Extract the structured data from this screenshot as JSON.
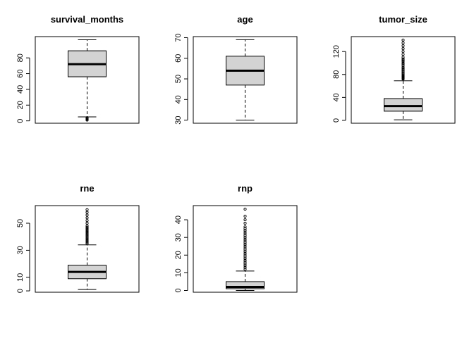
{
  "chart_data": [
    {
      "type": "boxplot",
      "title": "survival_months",
      "ylim": [
        -3,
        107
      ],
      "yticks": [
        0,
        20,
        40,
        60,
        80
      ],
      "box": {
        "whisker_low": 5,
        "q1": 56,
        "median": 72,
        "q3": 89,
        "whisker_high": 103
      },
      "outliers": [
        1,
        2,
        3,
        4
      ],
      "grid": false,
      "box_fill": "#d3d3d3"
    },
    {
      "type": "boxplot",
      "title": "age",
      "ylim": [
        28.5,
        70.5
      ],
      "yticks": [
        30,
        40,
        50,
        60,
        70
      ],
      "box": {
        "whisker_low": 30,
        "q1": 47,
        "median": 54,
        "q3": 61,
        "whisker_high": 69
      },
      "outliers": [],
      "grid": false,
      "box_fill": "#d3d3d3"
    },
    {
      "type": "boxplot",
      "title": "tumor_size",
      "ylim": [
        -5,
        146
      ],
      "yticks": [
        0,
        40,
        80,
        120
      ],
      "box": {
        "whisker_low": 1,
        "q1": 16,
        "median": 25,
        "q3": 38,
        "whisker_high": 69
      },
      "outliers": [
        72,
        73,
        74,
        75,
        76,
        77,
        78,
        80,
        82,
        84,
        86,
        88,
        90,
        92,
        95,
        98,
        100,
        103,
        105,
        107,
        110,
        115,
        120,
        125,
        130,
        135,
        140
      ],
      "grid": false,
      "box_fill": "#d3d3d3"
    },
    {
      "type": "boxplot",
      "title": "rne",
      "ylim": [
        -1,
        63
      ],
      "yticks": [
        0,
        10,
        30,
        50
      ],
      "box": {
        "whisker_low": 1,
        "q1": 9,
        "median": 14,
        "q3": 19,
        "whisker_high": 34
      },
      "outliers": [
        35,
        36,
        37,
        38,
        39,
        40,
        41,
        42,
        43,
        44,
        45,
        46,
        47,
        48,
        50,
        52,
        54,
        56,
        58,
        60
      ],
      "grid": false,
      "box_fill": "#d3d3d3"
    },
    {
      "type": "boxplot",
      "title": "rnp",
      "ylim": [
        -1,
        48
      ],
      "yticks": [
        0,
        10,
        20,
        30,
        40
      ],
      "box": {
        "whisker_low": 0,
        "q1": 1,
        "median": 2,
        "q3": 5,
        "whisker_high": 11
      },
      "outliers": [
        12,
        13,
        14,
        15,
        16,
        17,
        18,
        19,
        20,
        21,
        22,
        23,
        24,
        25,
        26,
        27,
        28,
        29,
        30,
        31,
        32,
        33,
        34,
        35,
        36,
        38,
        40,
        42,
        46
      ],
      "grid": false,
      "box_fill": "#d3d3d3"
    }
  ]
}
